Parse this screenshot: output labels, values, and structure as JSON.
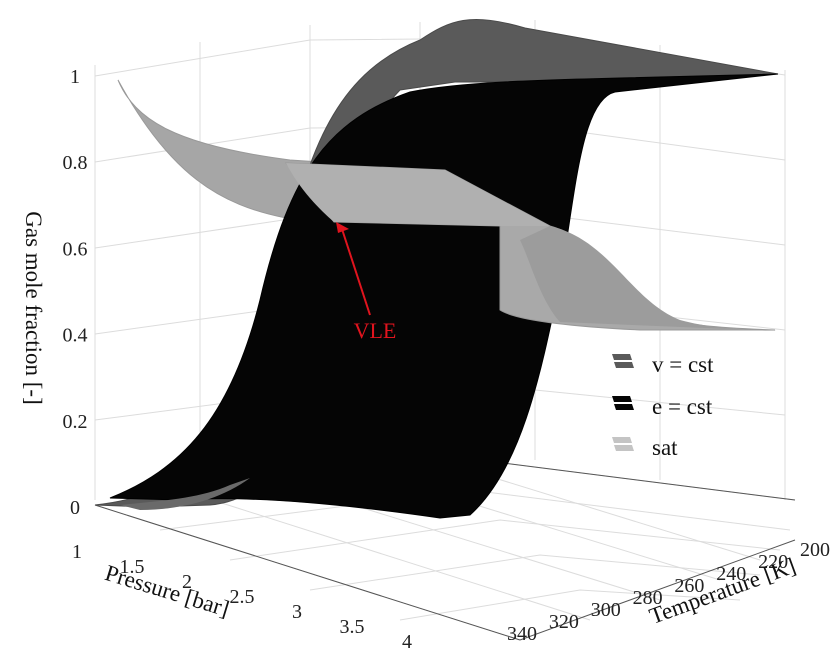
{
  "chart_data": {
    "type": "surface",
    "xlabel": "Pressure [bar]",
    "ylabel": "Temperature [K]",
    "zlabel": "Gas mole fraction [-]",
    "x_ticks": [
      "1",
      "1.5",
      "2",
      "2.5",
      "3",
      "3.5",
      "4"
    ],
    "y_ticks": [
      "200",
      "220",
      "240",
      "260",
      "280",
      "300",
      "320",
      "340"
    ],
    "z_ticks": [
      "0",
      "0.2",
      "0.4",
      "0.6",
      "0.8",
      "1"
    ],
    "xlim": [
      1,
      4
    ],
    "ylim": [
      200,
      340
    ],
    "zlim": [
      0,
      1
    ],
    "series": [
      {
        "name": "v = cst",
        "color": "#5a5a5a"
      },
      {
        "name": "e = cst",
        "color": "#050505"
      },
      {
        "name": "sat",
        "color": "#a9a9a9"
      }
    ],
    "annotations": [
      {
        "text": "VLE",
        "color": "#e0141e"
      }
    ],
    "legend_position": "right",
    "grid": true
  }
}
